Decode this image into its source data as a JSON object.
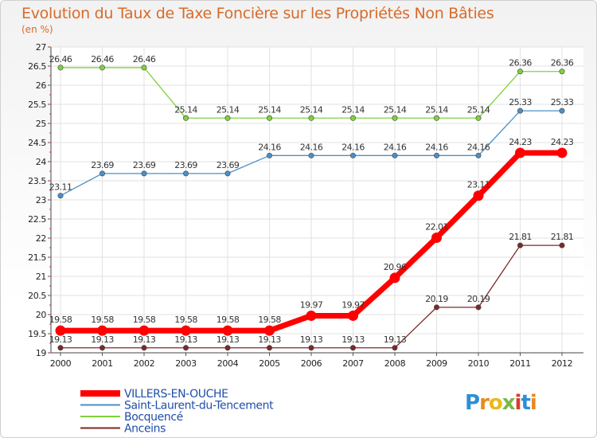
{
  "chart_data": {
    "type": "line",
    "title": "Evolution du Taux de Taxe Foncière sur les Propriétés Non Bâties",
    "subtitle": "(en %)",
    "x": [
      "2000",
      "2001",
      "2002",
      "2003",
      "2004",
      "2005",
      "2006",
      "2007",
      "2008",
      "2009",
      "2010",
      "2011",
      "2012"
    ],
    "ylim": [
      19,
      27
    ],
    "yticks": [
      "19",
      "19.5",
      "20",
      "20.5",
      "21",
      "21.5",
      "22",
      "22.5",
      "23",
      "23.5",
      "24",
      "24.5",
      "25",
      "25.5",
      "26",
      "26.5",
      "27"
    ],
    "grid": true,
    "legend_position": "bottom-left",
    "series": [
      {
        "name": "VILLERS-EN-OUCHE",
        "color": "#ff0000",
        "emphasis": true,
        "values": [
          19.58,
          19.58,
          19.58,
          19.58,
          19.58,
          19.58,
          19.97,
          19.97,
          20.96,
          22.01,
          23.11,
          24.23,
          24.23
        ],
        "labels": [
          "19.58",
          "19.58",
          "19.58",
          "19.58",
          "19.58",
          "19.58",
          "19.97",
          "19.97",
          "20.96",
          "22.01",
          "23.11",
          "24.23",
          "24.23"
        ]
      },
      {
        "name": "Saint-Laurent-du-Tencement",
        "color": "#4a90c8",
        "emphasis": false,
        "values": [
          23.11,
          23.69,
          23.69,
          23.69,
          23.69,
          24.16,
          24.16,
          24.16,
          24.16,
          24.16,
          24.16,
          25.33,
          25.33
        ],
        "labels": [
          "23.11",
          "23.69",
          "23.69",
          "23.69",
          "23.69",
          "24.16",
          "24.16",
          "24.16",
          "24.16",
          "24.16",
          "24.16",
          "25.33",
          "25.33"
        ]
      },
      {
        "name": "Bocquencé",
        "color": "#7ed23c",
        "emphasis": false,
        "values": [
          26.46,
          26.46,
          26.46,
          25.14,
          25.14,
          25.14,
          25.14,
          25.14,
          25.14,
          25.14,
          25.14,
          26.36,
          26.36
        ],
        "labels": [
          "26.46",
          "26.46",
          "26.46",
          "25.14",
          "25.14",
          "25.14",
          "25.14",
          "25.14",
          "25.14",
          "25.14",
          "25.14",
          "26.36",
          "26.36"
        ]
      },
      {
        "name": "Anceins",
        "color": "#7b2a2a",
        "emphasis": false,
        "values": [
          19.13,
          19.13,
          19.13,
          19.13,
          19.13,
          19.13,
          19.13,
          19.13,
          19.13,
          20.19,
          20.19,
          21.81,
          21.81
        ],
        "labels": [
          "19.13",
          "19.13",
          "19.13",
          "19.13",
          "19.13",
          "19.13",
          "19.13",
          "19.13",
          "19.13",
          "20.19",
          "20.19",
          "21.81",
          "21.81"
        ]
      }
    ]
  },
  "logo": {
    "letters": [
      "P",
      "r",
      "o",
      "x",
      "i",
      "t",
      "i"
    ]
  }
}
